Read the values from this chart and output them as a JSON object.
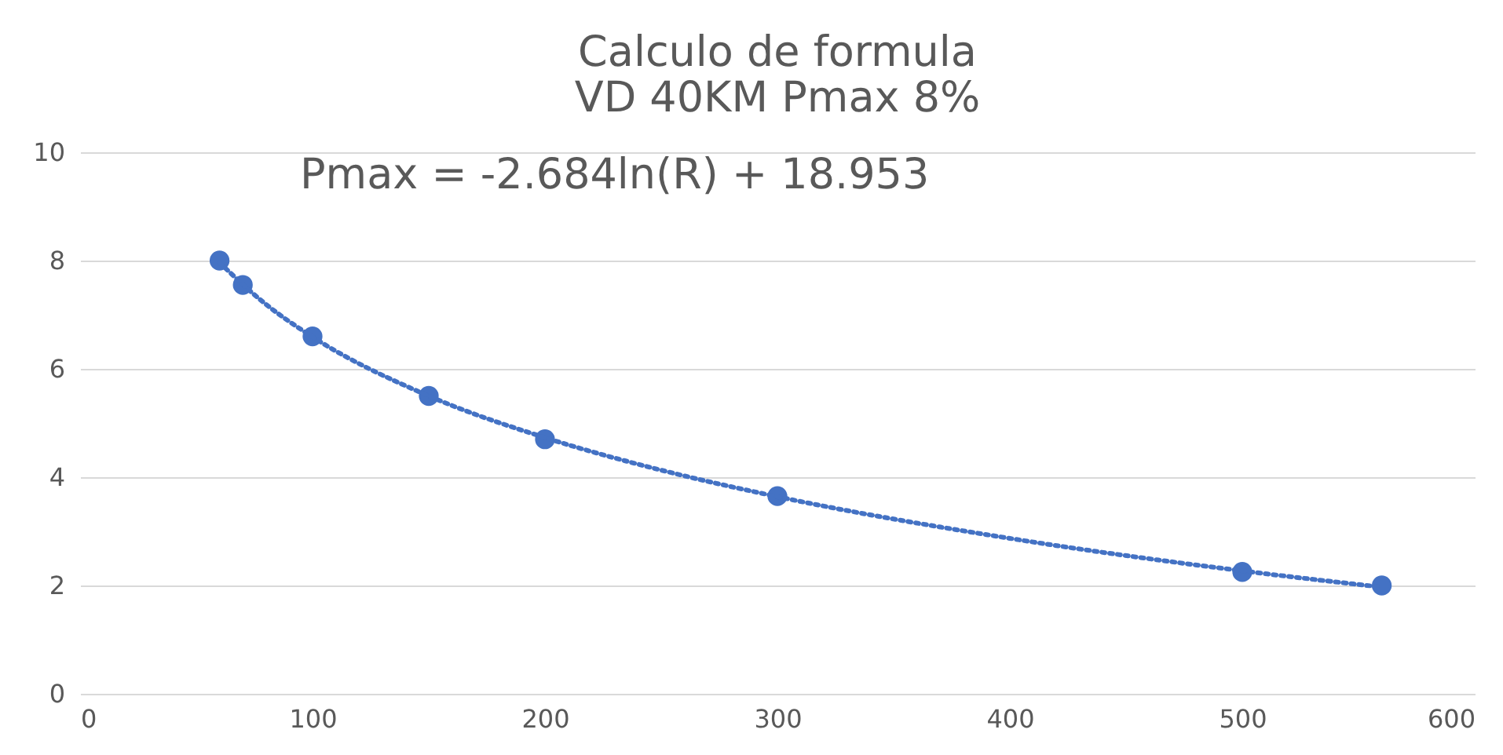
{
  "chart_data": {
    "type": "scatter",
    "title": [
      "Calculo de formula",
      "VD 40KM Pmax 8%"
    ],
    "x": [
      60,
      70,
      100,
      150,
      200,
      300,
      500,
      560
    ],
    "series": [
      {
        "color": "#4472c4",
        "marker": "circle",
        "values": [
          8.0,
          7.55,
          6.6,
          5.5,
          4.7,
          3.65,
          2.25,
          2.0
        ]
      },
      {
        "type": "line",
        "color": "#4472c4",
        "line_style": "dotted",
        "marker": "none",
        "x": [
          60,
          80,
          100,
          150,
          200,
          250,
          300,
          400,
          500,
          560
        ],
        "values": [
          7.96,
          7.19,
          6.59,
          5.5,
          4.73,
          4.13,
          3.64,
          2.87,
          2.27,
          1.97
        ]
      }
    ],
    "annotations": [
      "Pmax = -2.684ln(R) + 18.953"
    ],
    "xlim": [
      0,
      600
    ],
    "xticks": [
      0,
      100,
      200,
      300,
      400,
      500,
      600
    ],
    "ylim": [
      0,
      10
    ],
    "yticks": [
      0,
      2,
      4,
      6,
      8,
      10
    ],
    "grid": "y"
  }
}
